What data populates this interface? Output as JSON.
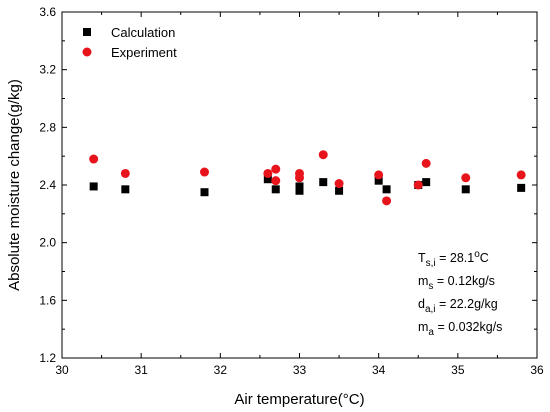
{
  "chart_data": {
    "type": "scatter",
    "xlabel": "Air temperature(°C)",
    "ylabel": "Absolute moisture change(g/kg)",
    "xlim": [
      30,
      36
    ],
    "ylim": [
      1.2,
      3.6
    ],
    "xticks": [
      30,
      31,
      32,
      33,
      34,
      35,
      36
    ],
    "xtick_labels": [
      "30",
      "31",
      "32",
      "33",
      "34",
      "35",
      "36"
    ],
    "yticks": [
      1.2,
      1.6,
      2.0,
      2.4,
      2.8,
      3.2,
      3.6
    ],
    "ytick_labels": [
      "1.2",
      "1.6",
      "2.0",
      "2.4",
      "2.8",
      "3.2",
      "3.6"
    ],
    "grid": false,
    "legend": "top-left",
    "series": [
      {
        "name": "Calculation",
        "marker": "square",
        "color": "#000000",
        "points": [
          [
            30.4,
            2.39
          ],
          [
            30.8,
            2.37
          ],
          [
            31.8,
            2.35
          ],
          [
            32.6,
            2.44
          ],
          [
            32.7,
            2.37
          ],
          [
            33.0,
            2.36
          ],
          [
            33.0,
            2.39
          ],
          [
            33.3,
            2.42
          ],
          [
            33.5,
            2.36
          ],
          [
            34.0,
            2.43
          ],
          [
            34.1,
            2.37
          ],
          [
            34.5,
            2.4
          ],
          [
            34.6,
            2.42
          ],
          [
            35.1,
            2.37
          ],
          [
            35.8,
            2.38
          ]
        ]
      },
      {
        "name": "Experiment",
        "marker": "circle",
        "color": "#e8141c",
        "points": [
          [
            30.4,
            2.58
          ],
          [
            30.8,
            2.48
          ],
          [
            31.8,
            2.49
          ],
          [
            32.6,
            2.48
          ],
          [
            32.7,
            2.51
          ],
          [
            32.7,
            2.43
          ],
          [
            33.0,
            2.48
          ],
          [
            33.0,
            2.45
          ],
          [
            33.3,
            2.61
          ],
          [
            33.5,
            2.41
          ],
          [
            34.0,
            2.47
          ],
          [
            34.1,
            2.29
          ],
          [
            34.5,
            2.4
          ],
          [
            34.6,
            2.55
          ],
          [
            35.1,
            2.45
          ],
          [
            35.8,
            2.47
          ]
        ]
      }
    ],
    "annotations": [
      {
        "base": "T",
        "sub": "s,i",
        "value": " = 28.1",
        "sup": "o",
        "suffix": "C"
      },
      {
        "base": "m",
        "sub": "s",
        "value": "  = 0.12kg/s",
        "sup": "",
        "suffix": ""
      },
      {
        "base": "d",
        "sub": "a,i",
        "value": " = 22.2g/kg",
        "sup": "",
        "suffix": ""
      },
      {
        "base": "m",
        "sub": "a",
        "value": "  = 0.032kg/s",
        "sup": "",
        "suffix": ""
      }
    ]
  }
}
